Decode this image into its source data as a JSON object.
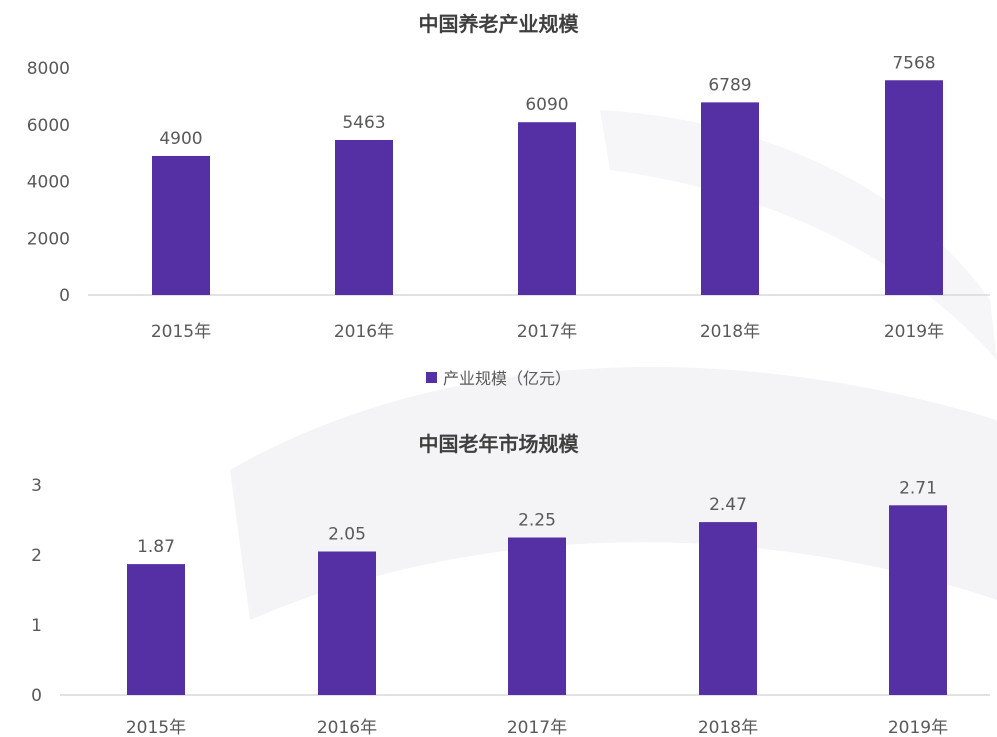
{
  "charts": {
    "top": {
      "title": "中国养老产业规模"
    },
    "bottom": {
      "title": "中国老年市场规模"
    }
  },
  "legend": {
    "label": "产业规模（亿元）",
    "color": "#5530a5"
  },
  "colors": {
    "bar": "#5530a5",
    "axis": "#d9d9d9",
    "text": "#595959"
  },
  "chart_data": [
    {
      "type": "bar",
      "title": "中国养老产业规模",
      "categories": [
        "2015年",
        "2016年",
        "2017年",
        "2018年",
        "2019年"
      ],
      "series": [
        {
          "name": "产业规模（亿元）",
          "values": [
            4900,
            5463,
            6090,
            6789,
            7568
          ]
        }
      ],
      "yticks": [
        0,
        2000,
        4000,
        6000,
        8000
      ],
      "ylim": [
        0,
        8000
      ],
      "legend": "bottom",
      "grid": false
    },
    {
      "type": "bar",
      "title": "中国老年市场规模",
      "categories": [
        "2015年",
        "2016年",
        "2017年",
        "2018年",
        "2019年"
      ],
      "values": [
        1.87,
        2.05,
        2.25,
        2.47,
        2.71
      ],
      "yticks": [
        0,
        1,
        2,
        3
      ],
      "ylim": [
        0,
        3
      ],
      "grid": false
    }
  ]
}
